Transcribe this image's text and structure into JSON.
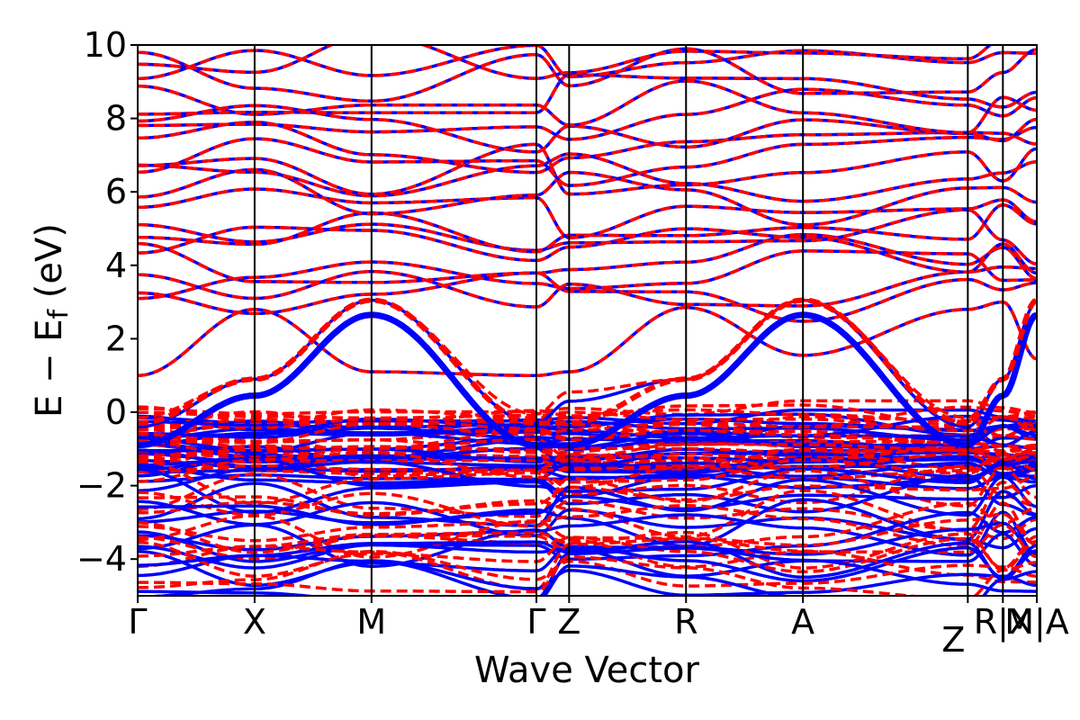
{
  "chart_data": {
    "type": "line",
    "title": "",
    "xlabel": "Wave Vector",
    "ylabel_main": "E − E",
    "ylabel_sub": "f",
    "ylabel_unit": " (eV)",
    "ylim": [
      -5,
      10
    ],
    "yticks": [
      -4,
      -2,
      0,
      2,
      4,
      6,
      8,
      10
    ],
    "ytick_labels": [
      "−4",
      "−2",
      "0",
      "2",
      "4",
      "6",
      "8",
      "10"
    ],
    "kpath": [
      {
        "label": "Γ",
        "x": 0.0
      },
      {
        "label": "X",
        "x": 1.0
      },
      {
        "label": "M",
        "x": 2.0
      },
      {
        "label": "Γ",
        "x": 3.41
      },
      {
        "label": "Z",
        "x": 3.69
      },
      {
        "label": "R",
        "x": 4.69
      },
      {
        "label": "A",
        "x": 5.69
      },
      {
        "label": "Z",
        "x": 7.1
      },
      {
        "label": "R|X",
        "x": 7.4
      },
      {
        "label": "R|X",
        "x": 7.4
      },
      {
        "label": "M|A",
        "x": 7.69
      },
      {
        "label": "M|A",
        "x": 7.69
      }
    ],
    "xtick_labels": [
      "Γ",
      "X",
      "M",
      "Γ",
      "Z",
      "R",
      "A",
      "Z",
      "R|X",
      "M|A"
    ],
    "xlim": [
      0,
      7.69
    ],
    "grid": false,
    "legend": "none",
    "series": [
      {
        "color": "#0000ff",
        "style": "solid"
      },
      {
        "color": "#ff0000",
        "style": "dashed"
      }
    ],
    "highlight_bands": [
      {
        "series": 0,
        "note_values": {
          "M": 2.65,
          "A": 2.65,
          "Gamma": -0.9
        }
      },
      {
        "series": 1,
        "note_values": {
          "M": 3.05,
          "A": 3.05,
          "Gamma": -0.3
        }
      }
    ]
  }
}
